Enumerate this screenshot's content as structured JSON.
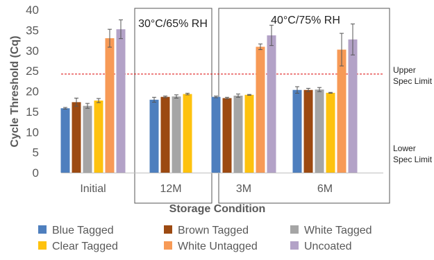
{
  "chart_data": {
    "type": "bar",
    "title": "",
    "xlabel": "Storage Condition",
    "ylabel": "Cycle Threshold (Cq)",
    "ylim": [
      0,
      40
    ],
    "yticks": [
      0,
      5,
      10,
      15,
      20,
      25,
      30,
      35,
      40
    ],
    "grid": false,
    "legend_position": "bottom",
    "categories": [
      "Initial",
      "12M",
      "3M",
      "6M"
    ],
    "series": [
      {
        "name": "Blue Tagged",
        "color": "#4e7fbe",
        "values": [
          15.8,
          17.9,
          18.6,
          20.3
        ],
        "errors": [
          0.2,
          0.6,
          0.2,
          0.8
        ]
      },
      {
        "name": "Brown Tagged",
        "color": "#9c4a12",
        "values": [
          17.3,
          18.6,
          18.3,
          20.3
        ],
        "errors": [
          1.0,
          0.2,
          0.2,
          0.4
        ]
      },
      {
        "name": "White Tagged",
        "color": "#a5a5a5",
        "values": [
          16.4,
          18.7,
          18.9,
          20.4
        ],
        "errors": [
          0.6,
          0.4,
          0.4,
          0.5
        ]
      },
      {
        "name": "Clear Tagged",
        "color": "#fec20e",
        "values": [
          17.7,
          19.3,
          19.1,
          19.6
        ],
        "errors": [
          0.5,
          0.2,
          0.1,
          0.1
        ]
      },
      {
        "name": "White Untagged",
        "color": "#f79a56",
        "values": [
          33.0,
          null,
          30.9,
          30.2
        ],
        "errors": [
          2.2,
          null,
          0.7,
          4.0
        ]
      },
      {
        "name": "Uncoated",
        "color": "#b3a2c7",
        "values": [
          35.2,
          null,
          33.7,
          32.7
        ],
        "errors": [
          2.3,
          null,
          2.5,
          3.8
        ]
      }
    ],
    "reference_line": {
      "value": 24.2,
      "color": "#e02020",
      "style": "dashed"
    },
    "annotations": {
      "box_12m": "30°C/65% RH",
      "box_accel": "40°C/75% RH",
      "upper_line1": "Upper",
      "upper_line2": "Spec Limit",
      "lower_line1": "Lower",
      "lower_line2": "Spec Limit"
    }
  }
}
